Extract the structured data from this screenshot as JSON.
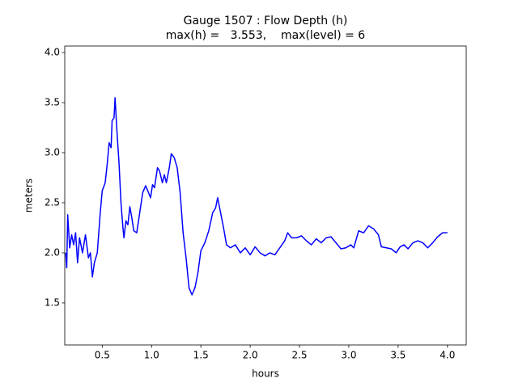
{
  "chart_data": {
    "type": "line",
    "title": "Gauge 1507 : Flow Depth (h)",
    "subtitle": "max(h) =   3.553,    max(level) = 6",
    "x_label": "hours",
    "y_label": "meters",
    "xlim": [
      0.12,
      4.19
    ],
    "ylim": [
      1.08,
      4.065
    ],
    "xticks": [
      0.5,
      {
        "value": 1,
        "label": "1.0"
      },
      1.5,
      {
        "value": 2,
        "label": "2.0"
      },
      2.5,
      {
        "value": 3,
        "label": "3.0"
      },
      3.5,
      {
        "value": 4,
        "label": "4.0"
      }
    ],
    "yticks": [
      1.5,
      {
        "value": 2,
        "label": "2.0"
      },
      2.5,
      {
        "value": 3,
        "label": "3.0"
      },
      3.5,
      {
        "value": 4,
        "label": "4.0"
      }
    ],
    "x": [
      0.13,
      0.14,
      0.15,
      0.17,
      0.19,
      0.21,
      0.23,
      0.25,
      0.27,
      0.3,
      0.33,
      0.36,
      0.38,
      0.4,
      0.42,
      0.45,
      0.48,
      0.5,
      0.53,
      0.55,
      0.57,
      0.59,
      0.6,
      0.62,
      0.63,
      0.65,
      0.67,
      0.69,
      0.71,
      0.72,
      0.74,
      0.76,
      0.78,
      0.8,
      0.82,
      0.85,
      0.88,
      0.91,
      0.94,
      0.97,
      0.99,
      1.01,
      1.03,
      1.06,
      1.08,
      1.11,
      1.13,
      1.15,
      1.18,
      1.2,
      1.23,
      1.26,
      1.29,
      1.32,
      1.35,
      1.38,
      1.41,
      1.44,
      1.47,
      1.5,
      1.54,
      1.58,
      1.62,
      1.65,
      1.67,
      1.7,
      1.73,
      1.76,
      1.8,
      1.85,
      1.9,
      1.95,
      2.0,
      2.05,
      2.1,
      2.15,
      2.2,
      2.25,
      2.3,
      2.35,
      2.38,
      2.42,
      2.47,
      2.52,
      2.57,
      2.62,
      2.67,
      2.72,
      2.77,
      2.82,
      2.87,
      2.92,
      2.97,
      3.02,
      3.05,
      3.1,
      3.15,
      3.2,
      3.25,
      3.3,
      3.33,
      3.38,
      3.43,
      3.48,
      3.52,
      3.56,
      3.6,
      3.65,
      3.7,
      3.75,
      3.8,
      3.85,
      3.9,
      3.95,
      4.0
    ],
    "series": [
      {
        "color": "#0000ff",
        "values": [
          2.0,
          1.85,
          2.38,
          2.05,
          2.18,
          2.08,
          2.2,
          1.9,
          2.15,
          2.0,
          2.18,
          1.95,
          2.0,
          1.76,
          1.9,
          2.0,
          2.4,
          2.62,
          2.7,
          2.88,
          3.1,
          3.05,
          3.32,
          3.35,
          3.55,
          3.2,
          2.9,
          2.5,
          2.25,
          2.15,
          2.32,
          2.28,
          2.46,
          2.35,
          2.22,
          2.2,
          2.4,
          2.6,
          2.67,
          2.6,
          2.55,
          2.68,
          2.65,
          2.85,
          2.82,
          2.7,
          2.78,
          2.7,
          2.85,
          2.99,
          2.95,
          2.85,
          2.6,
          2.2,
          1.95,
          1.65,
          1.58,
          1.65,
          1.8,
          2.02,
          2.1,
          2.22,
          2.4,
          2.45,
          2.55,
          2.4,
          2.25,
          2.08,
          2.05,
          2.08,
          2.0,
          2.05,
          1.98,
          2.06,
          2.0,
          1.97,
          2.0,
          1.98,
          2.05,
          2.12,
          2.2,
          2.15,
          2.15,
          2.17,
          2.12,
          2.08,
          2.14,
          2.1,
          2.15,
          2.16,
          2.1,
          2.04,
          2.05,
          2.08,
          2.05,
          2.22,
          2.2,
          2.27,
          2.24,
          2.18,
          2.06,
          2.05,
          2.04,
          2.0,
          2.06,
          2.08,
          2.04,
          2.1,
          2.12,
          2.1,
          2.05,
          2.1,
          2.16,
          2.2,
          2.2
        ]
      }
    ]
  }
}
